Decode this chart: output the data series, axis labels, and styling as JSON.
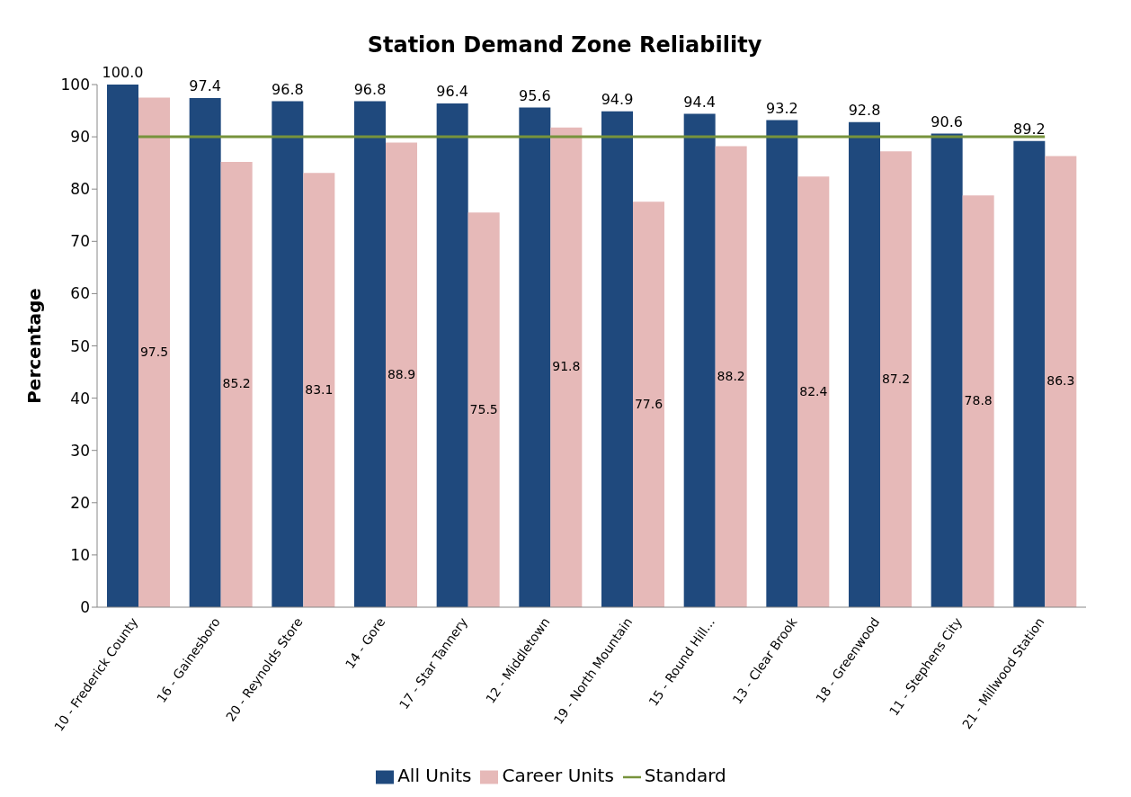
{
  "chart_data": {
    "type": "bar",
    "title": "Station Demand Zone Reliability",
    "ylabel": "Percentage",
    "categories": [
      "10 - Frederick County",
      "16 - Gainesboro",
      "20 - Reynolds Store",
      "14 - Gore",
      "17 - Star Tannery",
      "12 - Middletown",
      "19 - North Mountain",
      "15 - Round Hill...",
      "13 - Clear Brook",
      "18 - Greenwood",
      "11 - Stephens City",
      "21 - Millwood Station"
    ],
    "series": [
      {
        "name": "All Units",
        "color": "#1f497d",
        "values": [
          100.0,
          97.4,
          96.8,
          96.8,
          96.4,
          95.6,
          94.9,
          94.4,
          93.2,
          92.8,
          90.6,
          89.2
        ],
        "value_labels": [
          "100.0",
          "97.4",
          "96.8",
          "96.8",
          "96.4",
          "95.6",
          "94.9",
          "94.4",
          "93.2",
          "92.8",
          "90.6",
          "89.2"
        ]
      },
      {
        "name": "Career Units",
        "color": "#e6b9b8",
        "values": [
          97.5,
          85.2,
          83.1,
          88.9,
          75.5,
          91.8,
          77.6,
          88.2,
          82.4,
          87.2,
          78.8,
          86.3
        ],
        "value_labels": [
          "97.5",
          "85.2",
          "83.1",
          "88.9",
          "75.5",
          "91.8",
          "77.6",
          "88.2",
          "82.4",
          "87.2",
          "78.8",
          "86.3"
        ]
      },
      {
        "name": "Standard",
        "type": "line",
        "color": "#77933c",
        "values": [
          90,
          90,
          90,
          90,
          90,
          90,
          90,
          90,
          90,
          90,
          90,
          90
        ]
      }
    ],
    "ylim": [
      0,
      100
    ],
    "yticks": [
      0,
      10,
      20,
      30,
      40,
      50,
      60,
      70,
      80,
      90,
      100
    ],
    "legend": "bottom",
    "marker": "none"
  }
}
